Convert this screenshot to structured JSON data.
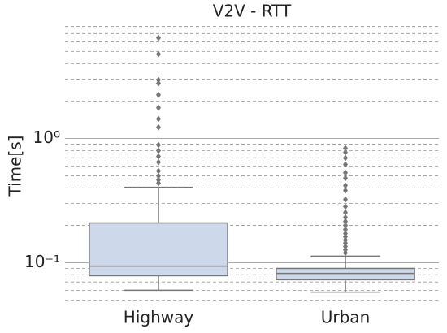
{
  "chart_data": {
    "type": "box",
    "title": "V2V - RTT",
    "ylabel": "Time[s]",
    "categories": [
      "Highway",
      "Urban"
    ],
    "boxes": [
      {
        "whislo": 0.06,
        "q1": 0.0786,
        "med": 0.094,
        "q3": 0.209,
        "whishi": 0.405,
        "fliers": [
          6.46,
          4.78,
          2.96,
          2.78,
          2.25,
          1.77,
          1.44,
          1.23,
          0.887,
          0.798,
          0.718,
          0.646,
          0.548,
          0.5,
          0.464,
          0.437
        ]
      },
      {
        "whislo": 0.058,
        "q1": 0.073,
        "med": 0.082,
        "q3": 0.09,
        "whishi": 0.113,
        "fliers": [
          0.835,
          0.774,
          0.697,
          0.618,
          0.531,
          0.479,
          0.418,
          0.382,
          0.323,
          0.283,
          0.254,
          0.232,
          0.215,
          0.2,
          0.185,
          0.172,
          0.162,
          0.152,
          0.144,
          0.135,
          0.127,
          0.12
        ]
      }
    ],
    "color": "#cdd9ea",
    "edge_color": "#777777",
    "ylim": [
      0.044,
      8.3
    ],
    "log_y": true,
    "grid": true,
    "minor_grid": true,
    "yticks": [
      {
        "value": 0.1,
        "label": "10⁻¹"
      },
      {
        "value": 1,
        "label": "10⁰"
      }
    ]
  }
}
